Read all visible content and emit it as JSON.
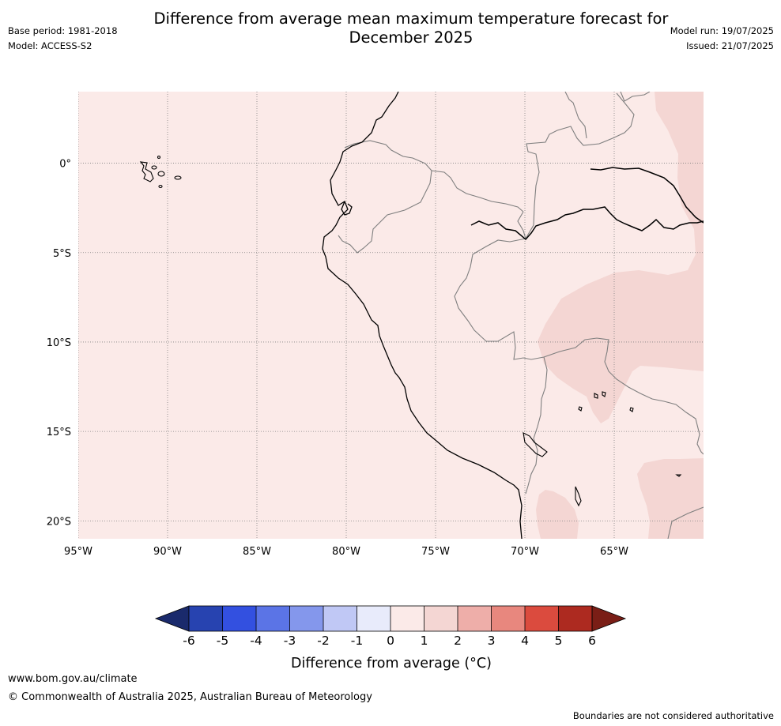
{
  "title": {
    "line1": "Difference from average mean maximum temperature forecast for",
    "line2": "December 2025"
  },
  "meta": {
    "base_period": "Base period: 1981-2018",
    "model": "Model: ACCESS-S2",
    "model_run": "Model run: 19/07/2025",
    "issued": "Issued: 21/07/2025"
  },
  "map": {
    "lon_labels": [
      "95°W",
      "90°W",
      "85°W",
      "80°W",
      "75°W",
      "70°W",
      "65°W"
    ],
    "lat_labels": [
      "0°",
      "5°S",
      "10°S",
      "15°S",
      "20°S"
    ],
    "lon_range": [
      -95,
      -60
    ],
    "lat_range": [
      -21,
      4
    ],
    "background_category": "0 to 1",
    "highlight_category": "1 to 2",
    "colors": {
      "ocean_land_0_1": "#fbeae8",
      "anomaly_1_2": "#f4d6d3",
      "coast": "#000000",
      "border": "#7f7f7f",
      "grid": "#7f7f7f"
    }
  },
  "colorbar": {
    "label": "Difference from average (°C)",
    "ticks": [
      "-6",
      "-5",
      "-4",
      "-3",
      "-2",
      "-1",
      "0",
      "1",
      "2",
      "3",
      "4",
      "5",
      "6"
    ],
    "low_extend_color": "#1a2a6c",
    "high_extend_color": "#7a1e16",
    "colors": [
      "#2743b0",
      "#3350e0",
      "#5b74e6",
      "#8497ec",
      "#c0c8f5",
      "#e8ebfb",
      "#fbeae8",
      "#f4d6d3",
      "#eeaea9",
      "#e8877e",
      "#db4b3e",
      "#ad2a20"
    ]
  },
  "footer": {
    "url": "www.bom.gov.au/climate",
    "copyright": "© Commonwealth of Australia 2025, Australian Bureau of Meteorology",
    "disclaimer": "Boundaries are not considered authoritative"
  }
}
